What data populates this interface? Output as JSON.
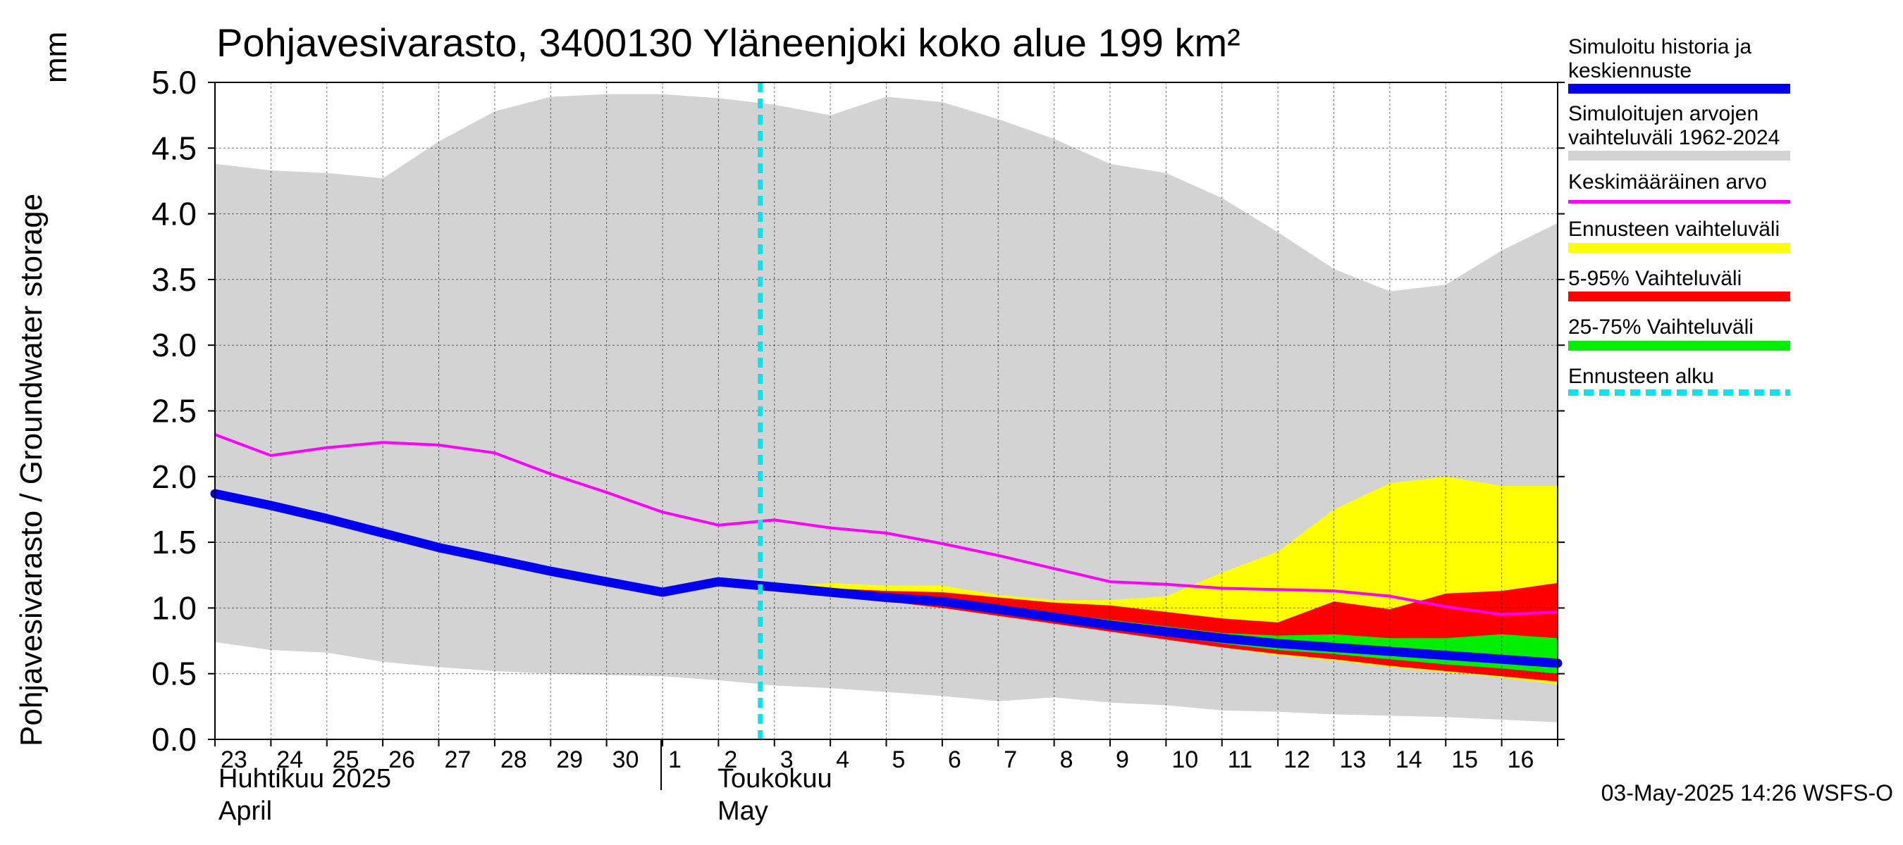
{
  "title": "Pohjavesivarasto, 3400130 Yläneenjoki koko alue 199 km²",
  "y_axis_label": "Pohjavesivarasto / Groundwater storage",
  "y_axis_unit": "mm",
  "month_labels": {
    "april_fi": "Huhtikuu  2025",
    "april_en": "April",
    "may_fi": "Toukokuu",
    "may_en": "May"
  },
  "timestamp": "03-May-2025 14:26 WSFS-O",
  "legend": {
    "items": [
      {
        "label": "Simuloitu historia ja keskiennuste",
        "color": "#0000ee"
      },
      {
        "label": "Simuloitujen arvojen vaihteluväli 1962-2024",
        "color": "#d3d3d3"
      },
      {
        "label": "Keskimääräinen arvo",
        "color": "#ff00ff"
      },
      {
        "label": "Ennusteen vaihteluväli",
        "color": "#ffff00"
      },
      {
        "label": "5-95% Vaihteluväli",
        "color": "#ff0000"
      },
      {
        "label": "25-75% Vaihteluväli",
        "color": "#00ee00"
      },
      {
        "label": "Ennusteen alku",
        "color": "#00e5ee"
      }
    ]
  },
  "chart_data": {
    "type": "area",
    "title": "Pohjavesivarasto, 3400130 Yläneenjoki koko alue 199 km²",
    "ylabel": "Pohjavesivarasto / Groundwater storage   mm",
    "xlabel": "",
    "ylim": [
      0,
      5
    ],
    "y_ticks": [
      "0.0",
      "0.5",
      "1.0",
      "1.5",
      "2.0",
      "2.5",
      "3.0",
      "3.5",
      "4.0",
      "4.5",
      "5.0"
    ],
    "x_tick_labels": [
      "23",
      "24",
      "25",
      "26",
      "27",
      "28",
      "29",
      "30",
      "1",
      "2",
      "3",
      "4",
      "5",
      "6",
      "7",
      "8",
      "9",
      "10",
      "11",
      "12",
      "13",
      "14",
      "15",
      "16"
    ],
    "x_days": [
      0,
      1,
      2,
      3,
      4,
      5,
      6,
      7,
      8,
      9,
      10,
      11,
      12,
      13,
      14,
      15,
      16,
      17,
      18,
      19,
      20,
      21,
      22,
      23,
      24
    ],
    "forecast_start_day": 10,
    "grid": true,
    "series": [
      {
        "name": "Simuloitujen arvojen vaihteluväli 1962-2024 (max)",
        "values": [
          4.38,
          4.33,
          4.31,
          4.27,
          4.55,
          4.78,
          4.89,
          4.91,
          4.91,
          4.88,
          4.83,
          4.75,
          4.89,
          4.85,
          4.72,
          4.57,
          4.38,
          4.31,
          4.12,
          3.86,
          3.58,
          3.41,
          3.46,
          3.72,
          3.93
        ]
      },
      {
        "name": "Simuloitujen arvojen vaihteluväli 1962-2024 (min)",
        "values": [
          0.74,
          0.68,
          0.66,
          0.59,
          0.55,
          0.52,
          0.5,
          0.49,
          0.48,
          0.45,
          0.41,
          0.39,
          0.36,
          0.33,
          0.29,
          0.32,
          0.28,
          0.26,
          0.22,
          0.21,
          0.19,
          0.18,
          0.17,
          0.15,
          0.13
        ]
      },
      {
        "name": "Keskimääräinen arvo",
        "values": [
          2.32,
          2.16,
          2.22,
          2.26,
          2.24,
          2.18,
          2.02,
          1.88,
          1.73,
          1.63,
          1.67,
          1.61,
          1.57,
          1.49,
          1.4,
          1.3,
          1.2,
          1.18,
          1.15,
          1.14,
          1.13,
          1.09,
          1.01,
          0.95,
          0.97
        ]
      },
      {
        "name": "Simuloitu historia ja keskiennuste",
        "values": [
          1.87,
          1.78,
          1.68,
          1.57,
          1.46,
          1.37,
          1.28,
          1.2,
          1.12,
          1.2,
          1.16,
          1.12,
          1.08,
          1.05,
          0.99,
          0.93,
          0.87,
          0.82,
          0.77,
          0.73,
          0.7,
          0.67,
          0.64,
          0.61,
          0.58
        ]
      },
      {
        "name": "Ennusteen vaihteluväli (max)",
        "values": [
          null,
          null,
          null,
          null,
          null,
          null,
          null,
          null,
          null,
          null,
          1.16,
          1.19,
          1.17,
          1.17,
          1.1,
          1.06,
          1.06,
          1.09,
          1.27,
          1.43,
          1.75,
          1.95,
          2.0,
          1.93,
          1.93
        ]
      },
      {
        "name": "Ennusteen vaihteluväli (min)",
        "values": [
          null,
          null,
          null,
          null,
          null,
          null,
          null,
          null,
          null,
          null,
          1.16,
          1.11,
          1.05,
          1.0,
          0.94,
          0.88,
          0.82,
          0.76,
          0.7,
          0.64,
          0.6,
          0.55,
          0.51,
          0.47,
          0.42
        ]
      },
      {
        "name": "5-95% Vaihteluväli (max)",
        "values": [
          null,
          null,
          null,
          null,
          null,
          null,
          null,
          null,
          null,
          null,
          1.16,
          1.15,
          1.13,
          1.12,
          1.08,
          1.04,
          1.02,
          0.97,
          0.92,
          0.89,
          1.05,
          0.99,
          1.11,
          1.13,
          1.19
        ]
      },
      {
        "name": "5-95% Vaihteluväli (min)",
        "values": [
          null,
          null,
          null,
          null,
          null,
          null,
          null,
          null,
          null,
          null,
          1.16,
          1.11,
          1.05,
          1.0,
          0.94,
          0.88,
          0.82,
          0.76,
          0.7,
          0.65,
          0.61,
          0.56,
          0.52,
          0.48,
          0.44
        ]
      },
      {
        "name": "25-75% Vaihteluväli (max)",
        "values": [
          null,
          null,
          null,
          null,
          null,
          null,
          null,
          null,
          null,
          null,
          1.16,
          1.13,
          1.1,
          1.07,
          1.01,
          0.96,
          0.91,
          0.86,
          0.81,
          0.79,
          0.8,
          0.77,
          0.77,
          0.8,
          0.77
        ]
      },
      {
        "name": "25-75% Vaihteluväli (min)",
        "values": [
          null,
          null,
          null,
          null,
          null,
          null,
          null,
          null,
          null,
          null,
          1.16,
          1.12,
          1.07,
          1.03,
          0.97,
          0.91,
          0.85,
          0.79,
          0.73,
          0.68,
          0.65,
          0.61,
          0.57,
          0.54,
          0.5
        ]
      }
    ]
  }
}
